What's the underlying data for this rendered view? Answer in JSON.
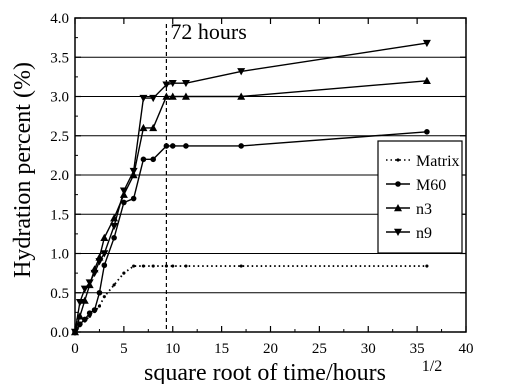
{
  "chart_data": {
    "type": "line",
    "title": "",
    "xlabel": "square root of time/hours",
    "xlabel_superscript": "1/2",
    "ylabel": "Hydration percent (%)",
    "xlim": [
      0,
      40
    ],
    "ylim": [
      0.0,
      4.0
    ],
    "xticks": [
      "0",
      "5",
      "10",
      "15",
      "20",
      "25",
      "30",
      "35",
      "40"
    ],
    "yticks": [
      "0.0",
      "0.5",
      "1.0",
      "1.5",
      "2.0",
      "2.5",
      "3.0",
      "3.5",
      "4.0"
    ],
    "grid": "horizontal lines at each major y tick",
    "legend_position": "right",
    "annotation": {
      "text": "72 hours",
      "x": 9.35
    },
    "series": [
      {
        "name": "Matrix",
        "marker": "dot",
        "line": "dotted",
        "x": [
          0,
          0.5,
          1,
          1.5,
          2,
          2.5,
          3,
          4,
          5,
          6,
          7,
          8,
          9.35,
          10,
          11.35,
          17,
          36
        ],
        "y": [
          0,
          0.08,
          0.14,
          0.2,
          0.26,
          0.33,
          0.45,
          0.6,
          0.75,
          0.84,
          0.84,
          0.84,
          0.84,
          0.84,
          0.84,
          0.84,
          0.84
        ]
      },
      {
        "name": "M60",
        "marker": "circle",
        "line": "solid",
        "x": [
          0,
          0.5,
          1,
          1.5,
          2,
          2.5,
          3,
          4,
          5,
          6,
          7,
          8,
          9.35,
          10,
          11.35,
          17,
          36
        ],
        "y": [
          0,
          0.1,
          0.16,
          0.24,
          0.28,
          0.5,
          0.85,
          1.2,
          1.65,
          1.7,
          2.2,
          2.2,
          2.37,
          2.37,
          2.37,
          2.37,
          2.55
        ]
      },
      {
        "name": "n3",
        "marker": "triangle-up",
        "line": "solid",
        "x": [
          0,
          0.5,
          1,
          1.5,
          2,
          2.5,
          3,
          4,
          5,
          6,
          7,
          8,
          9.35,
          10,
          11.35,
          17,
          36
        ],
        "y": [
          0,
          0.2,
          0.4,
          0.6,
          0.8,
          0.95,
          1.2,
          1.45,
          1.75,
          2.0,
          2.6,
          2.6,
          3.0,
          3.0,
          3.0,
          3.0,
          3.2
        ]
      },
      {
        "name": "n9",
        "marker": "triangle-down",
        "line": "solid",
        "x": [
          0,
          0.5,
          1,
          1.5,
          2,
          2.5,
          3,
          4,
          5,
          6,
          7,
          8,
          9.35,
          10,
          11.35,
          17,
          36
        ],
        "y": [
          0,
          0.38,
          0.55,
          0.63,
          0.75,
          0.9,
          1.0,
          1.35,
          1.8,
          2.05,
          2.98,
          2.98,
          3.15,
          3.17,
          3.17,
          3.32,
          3.68
        ]
      }
    ]
  }
}
